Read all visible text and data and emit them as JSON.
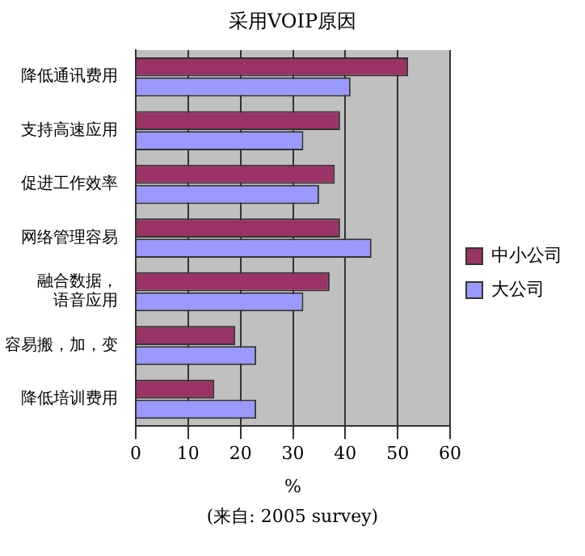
{
  "chart_data": {
    "type": "bar",
    "orientation": "horizontal",
    "title": "采用VOIP原因",
    "xlabel": "%",
    "categories": [
      "降低通讯费用",
      "支持高速应用",
      "促进工作效率",
      "网络管理容易",
      "融合数据，语音应用",
      "容易搬，加，变",
      "降低培训费用"
    ],
    "series": [
      {
        "name": "中小公司",
        "color": "#993366",
        "values": [
          52,
          39,
          38,
          39,
          37,
          19,
          15
        ]
      },
      {
        "name": "大公司",
        "color": "#9999ff",
        "values": [
          41,
          32,
          35,
          45,
          32,
          23,
          23
        ]
      }
    ],
    "xlim": [
      0,
      60
    ],
    "xticks": [
      0,
      10,
      20,
      30,
      40,
      50,
      60
    ],
    "grid": "x",
    "legend": "right",
    "annotations": [
      "(来自: 2005 survey)"
    ]
  }
}
